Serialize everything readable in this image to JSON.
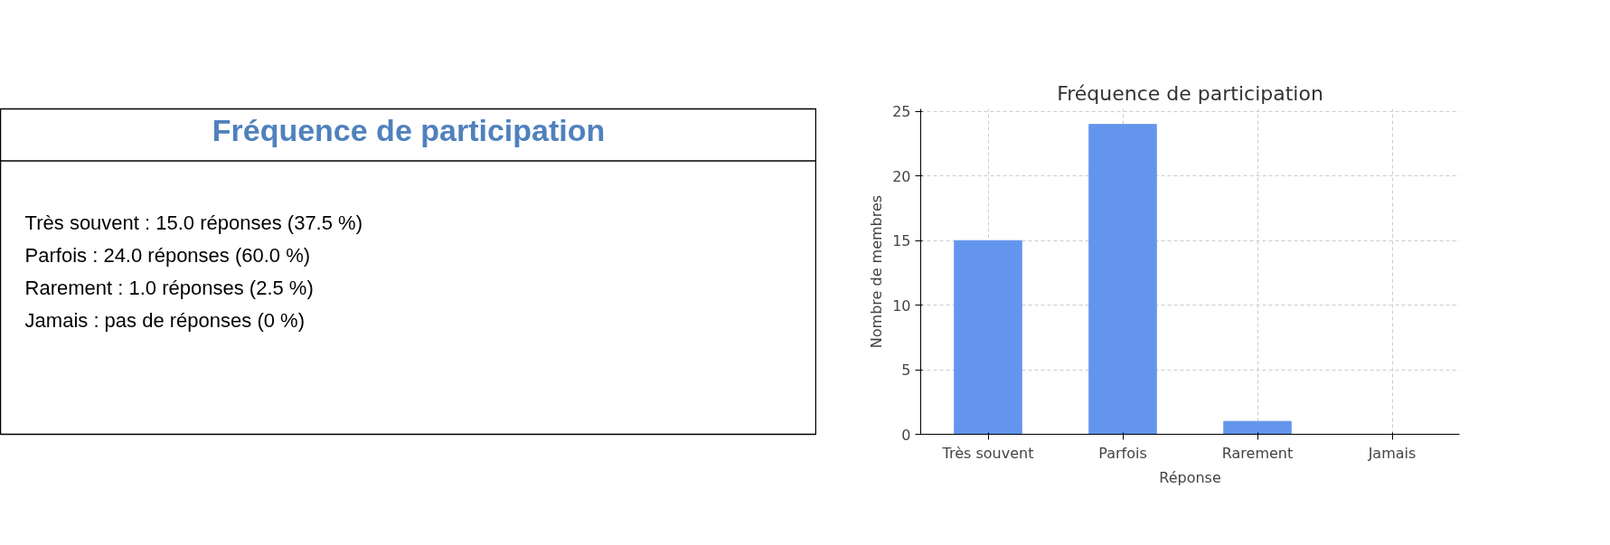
{
  "chart_data": [
    {
      "type": "other",
      "title": "Fréquence de participation",
      "color": "#4f81bd",
      "annotations": [
        "Très souvent : 15.0 réponses (37.5 %)",
        "Parfois : 24.0 réponses (60.0 %)",
        "Rarement : 1.0 réponses (2.5 %)",
        "Jamais : pas de réponses (0 %)"
      ]
    },
    {
      "type": "bar",
      "title": "Fréquence de participation",
      "xlabel": "Réponse",
      "ylabel": "Nombre de membres",
      "categories": [
        "Très souvent",
        "Parfois",
        "Rarement",
        "Jamais"
      ],
      "values": [
        15,
        24,
        1,
        0
      ],
      "color": "#6495ed",
      "ylim": [
        0,
        25.2
      ],
      "yticks": [
        0,
        5,
        10,
        15,
        20,
        25
      ],
      "grid": true
    }
  ]
}
